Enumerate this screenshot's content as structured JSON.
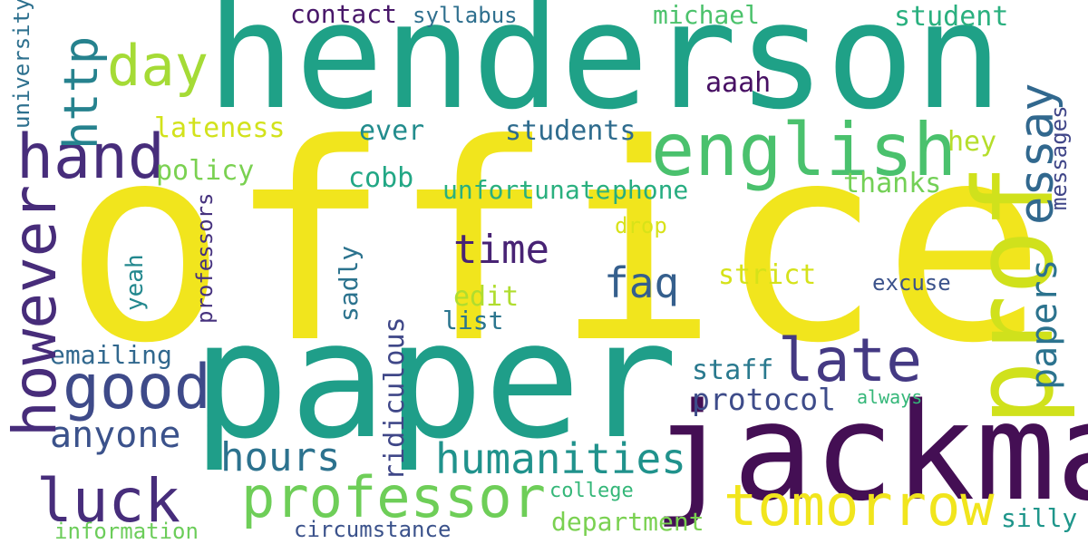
{
  "words": {
    "office": {
      "text": "office",
      "color": "#f1e51d"
    },
    "henderson": {
      "text": "henderson",
      "color": "#1fa187"
    },
    "paper": {
      "text": "paper",
      "color": "#1f9e89"
    },
    "jackman": {
      "text": "jackman",
      "color": "#440f54"
    },
    "prof": {
      "text": "prof",
      "color": "#d0e11c"
    },
    "english": {
      "text": "english",
      "color": "#4ac16d"
    },
    "professor": {
      "text": "professor",
      "color": "#6ece58"
    },
    "tomorrow": {
      "text": "tomorrow",
      "color": "#f1e51d"
    },
    "good": {
      "text": "good",
      "color": "#3e4a89"
    },
    "late": {
      "text": "late",
      "color": "#443983"
    },
    "hand": {
      "text": "hand",
      "color": "#472d7b"
    },
    "however": {
      "text": "however",
      "color": "#472c7a"
    },
    "luck": {
      "text": "luck",
      "color": "#472d7b"
    },
    "day": {
      "text": "day",
      "color": "#a5db36"
    },
    "http": {
      "text": "http",
      "color": "#26828e"
    },
    "essay": {
      "text": "essay",
      "color": "#31688e"
    },
    "humanities": {
      "text": "humanities",
      "color": "#20928c"
    },
    "anyone": {
      "text": "anyone",
      "color": "#3b528b"
    },
    "hours": {
      "text": "hours",
      "color": "#2c728e"
    },
    "time": {
      "text": "time",
      "color": "#482374"
    },
    "papers": {
      "text": "papers",
      "color": "#2c738e"
    },
    "faq": {
      "text": "faq",
      "color": "#355f8d"
    },
    "protocol": {
      "text": "protocol",
      "color": "#3e4c8a"
    },
    "ridiculous": {
      "text": "ridiculous",
      "color": "#3f4788"
    },
    "contact": {
      "text": "contact",
      "color": "#481769"
    },
    "syllabus": {
      "text": "syllabus",
      "color": "#2e6f8e"
    },
    "michael": {
      "text": "michael",
      "color": "#4cc26c"
    },
    "student": {
      "text": "student",
      "color": "#2ab07f"
    },
    "lateness": {
      "text": "lateness",
      "color": "#d2e21b"
    },
    "ever": {
      "text": "ever",
      "color": "#228c8d"
    },
    "students": {
      "text": "students",
      "color": "#2f6c8e"
    },
    "aaah": {
      "text": "aaah",
      "color": "#471063"
    },
    "hey": {
      "text": "hey",
      "color": "#b5de2b"
    },
    "policy": {
      "text": "policy",
      "color": "#7ad151"
    },
    "cobb": {
      "text": "cobb",
      "color": "#22a785"
    },
    "unfortunate": {
      "text": "unfortunate",
      "color": "#2ab07f"
    },
    "phone": {
      "text": "phone",
      "color": "#27ad81"
    },
    "thanks": {
      "text": "thanks",
      "color": "#73d056"
    },
    "messages": {
      "text": "messages",
      "color": "#404688"
    },
    "drop": {
      "text": "drop",
      "color": "#d8e219"
    },
    "strict": {
      "text": "strict",
      "color": "#d5e21a"
    },
    "excuse": {
      "text": "excuse",
      "color": "#3b528b"
    },
    "edit": {
      "text": "edit",
      "color": "#b0dd2f"
    },
    "list": {
      "text": "list",
      "color": "#2b758e"
    },
    "emailing": {
      "text": "emailing",
      "color": "#31688e"
    },
    "staff": {
      "text": "staff",
      "color": "#29798e"
    },
    "always": {
      "text": "always",
      "color": "#35b779"
    },
    "college": {
      "text": "college",
      "color": "#35b779"
    },
    "department": {
      "text": "department",
      "color": "#7ad151"
    },
    "silly": {
      "text": "silly",
      "color": "#1f968b"
    },
    "circumstance": {
      "text": "circumstance",
      "color": "#3b528b"
    },
    "information": {
      "text": "information",
      "color": "#6ccd5a"
    },
    "university": {
      "text": "university",
      "color": "#2d708e"
    },
    "professors": {
      "text": "professors",
      "color": "#46327e"
    },
    "yeah": {
      "text": "yeah",
      "color": "#23888e"
    },
    "sadly": {
      "text": "sadly",
      "color": "#2c738e"
    }
  }
}
